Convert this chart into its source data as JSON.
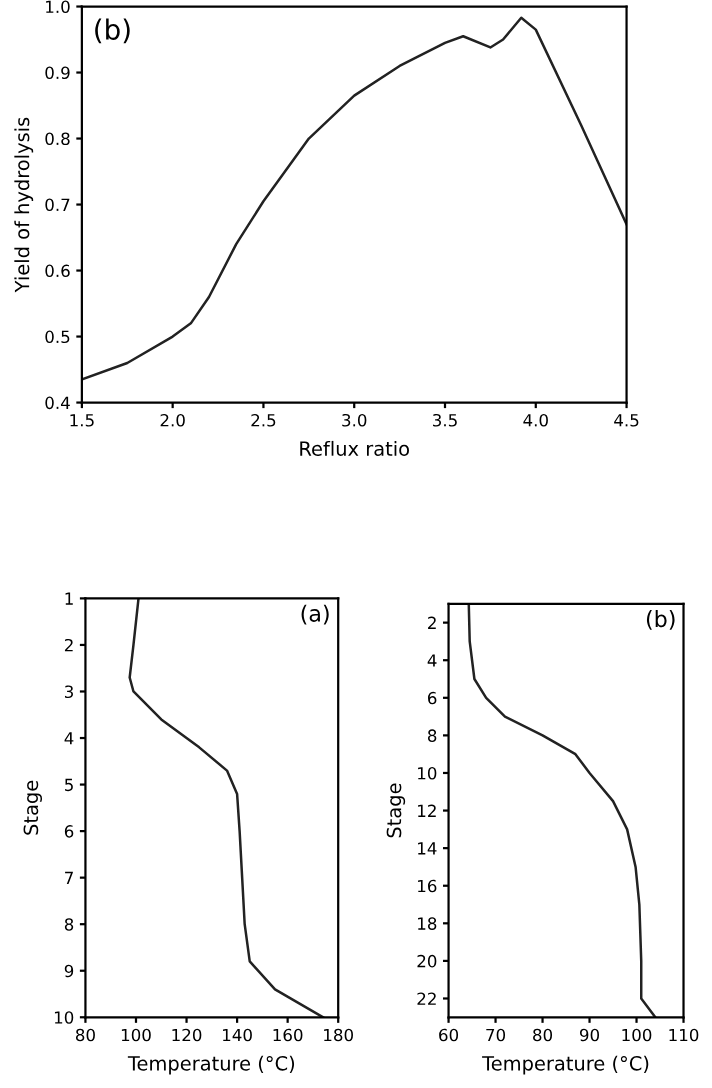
{
  "chart_data": [
    {
      "type": "line",
      "xlabel": "Reflux ratio",
      "ylabel": "Yield of hydrolysis",
      "annotations": [
        "(b)"
      ],
      "series": [
        {
          "color": "#222222",
          "x": [
            1.5,
            1.75,
            2.0,
            2.1,
            2.2,
            2.35,
            2.5,
            2.75,
            3.0,
            3.25,
            3.5,
            3.6,
            3.75,
            3.82,
            3.92,
            4.0,
            4.25,
            4.5
          ],
          "values": [
            0.435,
            0.46,
            0.5,
            0.52,
            0.56,
            0.64,
            0.705,
            0.8,
            0.865,
            0.91,
            0.945,
            0.955,
            0.938,
            0.95,
            0.983,
            0.965,
            0.82,
            0.67
          ]
        }
      ],
      "xlim": [
        1.5,
        4.5
      ],
      "xticks": [
        1.5,
        {
          "value": 2,
          "label": "2.0"
        },
        2.5,
        {
          "value": 3,
          "label": "3.0"
        },
        3.5,
        {
          "value": 4,
          "label": "4.0"
        },
        4.5
      ],
      "ylim": [
        0.4,
        1.0
      ],
      "yticks": [
        0.4,
        0.5,
        0.6,
        0.7,
        0.8,
        0.9,
        {
          "value": 1,
          "label": "1.0"
        }
      ],
      "grid": false,
      "legend": false
    },
    {
      "type": "line",
      "xlabel": "Temperature (°C)",
      "ylabel": "Stage",
      "annotations": [
        "(a)"
      ],
      "series": [
        {
          "color": "#222222",
          "x": [
            101,
            99,
            97.5,
            99,
            110,
            125,
            136,
            140,
            141,
            142,
            143,
            145,
            155,
            174
          ],
          "values": [
            1,
            2,
            2.7,
            3,
            3.6,
            4.2,
            4.7,
            5.2,
            6,
            7,
            8,
            8.8,
            9.4,
            10
          ]
        }
      ],
      "xlim": [
        80,
        180
      ],
      "xticks": [
        80,
        100,
        120,
        140,
        160,
        180
      ],
      "ylim": [
        10,
        1
      ],
      "yticks": [
        1,
        2,
        3,
        4,
        5,
        6,
        7,
        8,
        9,
        10
      ],
      "grid": false,
      "legend": false
    },
    {
      "type": "line",
      "xlabel": "Temperature (°C)",
      "ylabel": "Stage",
      "annotations": [
        "(b)"
      ],
      "series": [
        {
          "color": "#222222",
          "x": [
            64.3,
            64.5,
            65.5,
            68,
            72,
            80,
            87,
            90,
            95,
            98,
            99.8,
            100.6,
            101,
            101,
            104
          ],
          "values": [
            1,
            3,
            5,
            6,
            7,
            8,
            9,
            10,
            11.5,
            13,
            15,
            17,
            20,
            22,
            23
          ]
        }
      ],
      "xlim": [
        60,
        110
      ],
      "xticks": [
        60,
        70,
        80,
        90,
        100,
        110
      ],
      "ylim": [
        23,
        1
      ],
      "yticks": [
        2,
        4,
        6,
        8,
        10,
        12,
        14,
        16,
        18,
        20,
        22
      ],
      "grid": false,
      "legend": false
    }
  ]
}
